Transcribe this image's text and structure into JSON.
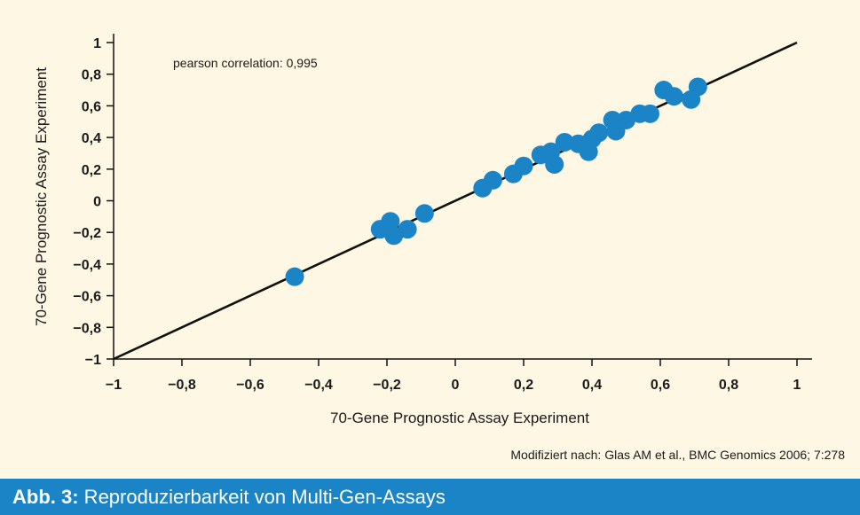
{
  "colors": {
    "background": "#fdf7e4",
    "point": "#1b84c7",
    "line": "#111111",
    "caption_bar": "#1b84c7",
    "caption_text": "#ffffff"
  },
  "chart_data": {
    "type": "scatter",
    "xlabel": "70-Gene Prognostic Assay Experiment",
    "ylabel": "70-Gene Prognostic Assay Experiment",
    "xlim": [
      -1,
      1
    ],
    "ylim": [
      -1,
      1
    ],
    "x_ticks": [
      "−1",
      "−0,8",
      "−0,6",
      "−0,4",
      "−0,2",
      "0",
      "0,2",
      "0,4",
      "0,6",
      "0,8",
      "1"
    ],
    "y_ticks": [
      "1",
      "0,8",
      "0,6",
      "0,4",
      "0,2",
      "0",
      "−0,2",
      "−0,4",
      "−0,6",
      "−0,8",
      "−1"
    ],
    "x_tick_values": [
      -1,
      -0.8,
      -0.6,
      -0.4,
      -0.2,
      0,
      0.2,
      0.4,
      0.6,
      0.8,
      1
    ],
    "y_tick_values": [
      1,
      0.8,
      0.6,
      0.4,
      0.2,
      0,
      -0.2,
      -0.4,
      -0.6,
      -0.8,
      -1
    ],
    "annotation": "pearson correlation: 0,995",
    "reference_line": {
      "from": [
        -1,
        -1
      ],
      "to": [
        1,
        1
      ]
    },
    "grid": false,
    "points": [
      {
        "x": -0.47,
        "y": -0.48
      },
      {
        "x": -0.22,
        "y": -0.18
      },
      {
        "x": -0.19,
        "y": -0.13
      },
      {
        "x": -0.18,
        "y": -0.22
      },
      {
        "x": -0.14,
        "y": -0.18
      },
      {
        "x": -0.09,
        "y": -0.08
      },
      {
        "x": 0.08,
        "y": 0.08
      },
      {
        "x": 0.11,
        "y": 0.13
      },
      {
        "x": 0.17,
        "y": 0.17
      },
      {
        "x": 0.2,
        "y": 0.22
      },
      {
        "x": 0.25,
        "y": 0.29
      },
      {
        "x": 0.28,
        "y": 0.31
      },
      {
        "x": 0.29,
        "y": 0.23
      },
      {
        "x": 0.32,
        "y": 0.37
      },
      {
        "x": 0.36,
        "y": 0.36
      },
      {
        "x": 0.39,
        "y": 0.31
      },
      {
        "x": 0.4,
        "y": 0.39
      },
      {
        "x": 0.42,
        "y": 0.43
      },
      {
        "x": 0.46,
        "y": 0.51
      },
      {
        "x": 0.47,
        "y": 0.44
      },
      {
        "x": 0.5,
        "y": 0.51
      },
      {
        "x": 0.54,
        "y": 0.55
      },
      {
        "x": 0.57,
        "y": 0.55
      },
      {
        "x": 0.61,
        "y": 0.7
      },
      {
        "x": 0.64,
        "y": 0.66
      },
      {
        "x": 0.69,
        "y": 0.64
      },
      {
        "x": 0.71,
        "y": 0.72
      }
    ]
  },
  "source_note": "Modifiziert nach: Glas AM et al., BMC Genomics 2006; 7:278",
  "caption": {
    "label": "Abb. 3:",
    "text": " Reproduzierbarkeit von Multi-Gen-Assays"
  }
}
